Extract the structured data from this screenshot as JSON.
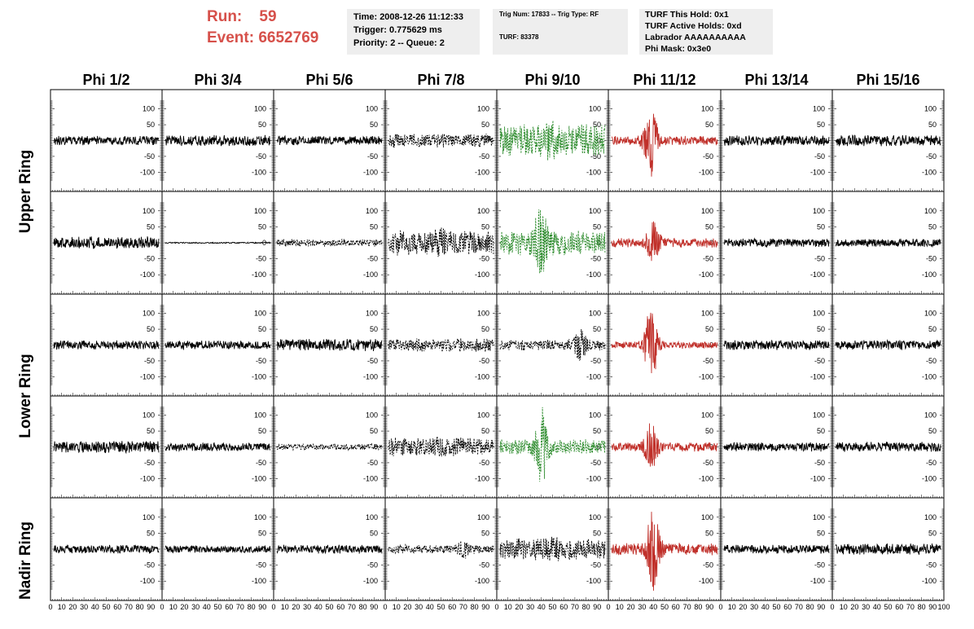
{
  "header": {
    "run_label": "Run:",
    "run_value": "59",
    "event_label": "Event:",
    "event_value": "6652769",
    "time": "Time: 2008-12-26 11:12:33",
    "trigger": "Trigger: 0.775629 ms",
    "priority": "Priority: 2 -- Queue: 2",
    "trig_num": "Trig Num: 17833 -- Trig Type: RF",
    "turf": "TURF: 83378",
    "turf_this_hold": "TURF This Hold: 0x1",
    "turf_active_holds": "TURF Active Holds: 0xd",
    "labrador": "Labrador AAAAAAAAAA",
    "phi_mask": "Phi Mask: 0x3e0"
  },
  "columns": [
    "Phi 1/2",
    "Phi 3/4",
    "Phi 5/6",
    "Phi 7/8",
    "Phi 9/10",
    "Phi 11/12",
    "Phi 13/14",
    "Phi 15/16"
  ],
  "ring_labels": [
    "Upper Ring",
    "Lower Ring",
    "Nadir Ring"
  ],
  "colors": {
    "normal": "#000000",
    "masked": "#2a8a2a",
    "triggered": "#c0302a",
    "header_red": "#d6504a",
    "box_bg": "#eeeeee"
  },
  "chart_data": {
    "type": "line",
    "xlim": [
      0,
      100
    ],
    "ylim": [
      -130,
      130
    ],
    "x_ticks": [
      "0",
      "10",
      "20",
      "30",
      "40",
      "50",
      "60",
      "70",
      "80",
      "90",
      "100"
    ],
    "y_ticks": [
      "100",
      "50",
      "0",
      "-50",
      "-100"
    ],
    "rows": [
      [
        {
          "style": "normal",
          "amp": 15,
          "burst": 0,
          "pos": 0
        },
        {
          "style": "normal",
          "amp": 18,
          "burst": 0,
          "pos": 0
        },
        {
          "style": "normal",
          "amp": 15,
          "burst": 0,
          "pos": 0
        },
        {
          "style": "dashed",
          "amp": 22,
          "burst": 0,
          "pos": 0
        },
        {
          "style": "masked",
          "amp": 55,
          "burst": 25,
          "pos": 50
        },
        {
          "style": "triggered",
          "amp": 15,
          "burst": 110,
          "pos": 38
        },
        {
          "style": "normal",
          "amp": 17,
          "burst": 0,
          "pos": 0
        },
        {
          "style": "normal",
          "amp": 18,
          "burst": 0,
          "pos": 0
        }
      ],
      [
        {
          "style": "normal",
          "amp": 20,
          "burst": 0,
          "pos": 0
        },
        {
          "style": "normal",
          "amp": 2,
          "burst": 0,
          "pos": 0
        },
        {
          "style": "dashed",
          "amp": 12,
          "burst": 0,
          "pos": 0
        },
        {
          "style": "dashed",
          "amp": 40,
          "burst": 15,
          "pos": 50
        },
        {
          "style": "masked",
          "amp": 40,
          "burst": 110,
          "pos": 40
        },
        {
          "style": "triggered",
          "amp": 15,
          "burst": 60,
          "pos": 40
        },
        {
          "style": "normal",
          "amp": 14,
          "burst": 0,
          "pos": 0
        },
        {
          "style": "normal",
          "amp": 13,
          "burst": 0,
          "pos": 0
        }
      ],
      [
        {
          "style": "normal",
          "amp": 15,
          "burst": 0,
          "pos": 0
        },
        {
          "style": "normal",
          "amp": 14,
          "burst": 0,
          "pos": 0
        },
        {
          "style": "normal",
          "amp": 20,
          "burst": 0,
          "pos": 0
        },
        {
          "style": "dashed",
          "amp": 22,
          "burst": 0,
          "pos": 0
        },
        {
          "style": "dashed",
          "amp": 18,
          "burst": 40,
          "pos": 75
        },
        {
          "style": "triggered",
          "amp": 12,
          "burst": 120,
          "pos": 38
        },
        {
          "style": "normal",
          "amp": 16,
          "burst": 0,
          "pos": 0
        },
        {
          "style": "normal",
          "amp": 16,
          "burst": 0,
          "pos": 0
        }
      ],
      [
        {
          "style": "normal",
          "amp": 20,
          "burst": 0,
          "pos": 0
        },
        {
          "style": "normal",
          "amp": 14,
          "burst": 0,
          "pos": 0
        },
        {
          "style": "dashed",
          "amp": 10,
          "burst": 0,
          "pos": 0
        },
        {
          "style": "dashed",
          "amp": 30,
          "burst": 10,
          "pos": 50
        },
        {
          "style": "masked",
          "amp": 25,
          "burst": 110,
          "pos": 40
        },
        {
          "style": "triggered",
          "amp": 15,
          "burst": 70,
          "pos": 38
        },
        {
          "style": "normal",
          "amp": 15,
          "burst": 0,
          "pos": 0
        },
        {
          "style": "normal",
          "amp": 16,
          "burst": 0,
          "pos": 0
        }
      ],
      [
        {
          "style": "normal",
          "amp": 14,
          "burst": 0,
          "pos": 0
        },
        {
          "style": "normal",
          "amp": 12,
          "burst": 0,
          "pos": 0
        },
        {
          "style": "normal",
          "amp": 14,
          "burst": 0,
          "pos": 0
        },
        {
          "style": "dashed",
          "amp": 14,
          "burst": 20,
          "pos": 70
        },
        {
          "style": "dashed",
          "amp": 35,
          "burst": 20,
          "pos": 50
        },
        {
          "style": "triggered",
          "amp": 20,
          "burst": 125,
          "pos": 40
        },
        {
          "style": "normal",
          "amp": 14,
          "burst": 0,
          "pos": 0
        },
        {
          "style": "normal",
          "amp": 18,
          "burst": 0,
          "pos": 0
        }
      ]
    ]
  }
}
